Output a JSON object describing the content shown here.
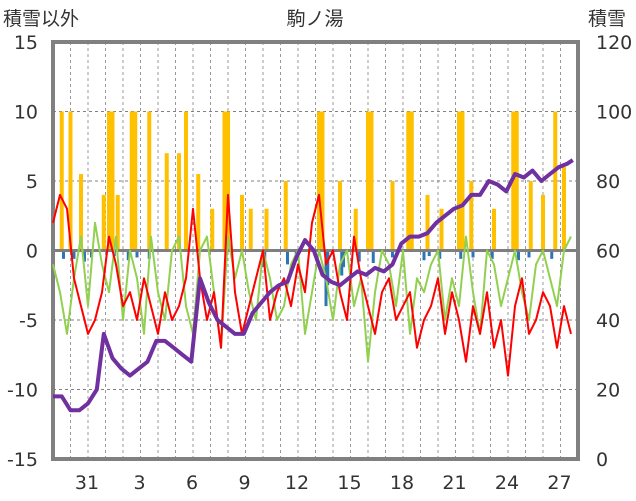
{
  "chart_data": {
    "type": "line",
    "title": "駒ノ湯",
    "left_axis": {
      "label": "積雪以外",
      "ylim": [
        -15,
        15
      ],
      "ticks": [
        15,
        10,
        5,
        0,
        -5,
        -10,
        -15
      ]
    },
    "right_axis": {
      "label": "積雪",
      "ylim": [
        0,
        120
      ],
      "ticks": [
        120,
        100,
        80,
        60,
        40,
        20,
        0
      ]
    },
    "x_ticks": [
      "31",
      "3",
      "6",
      "9",
      "12",
      "15",
      "18",
      "21",
      "24",
      "27"
    ],
    "x_tick_index": [
      2,
      5,
      8,
      11,
      14,
      17,
      20,
      23,
      26,
      29
    ],
    "x_range": [
      0,
      30
    ],
    "grid": true,
    "legend": "none",
    "colors": {
      "precip_bars": "#ffc000",
      "bars_negative": "#2e75b6",
      "temp_line": "#ff0000",
      "humidity_line": "#92d050",
      "snow_line": "#7030a0",
      "frame": "#808080",
      "grid": "#808080",
      "zero_line": "#7f7f7f"
    },
    "precip_bars": [
      [
        0.5,
        10
      ],
      [
        1.0,
        10
      ],
      [
        1.6,
        5.5
      ],
      [
        2.9,
        4
      ],
      [
        3.2,
        10
      ],
      [
        3.4,
        10
      ],
      [
        3.7,
        4
      ],
      [
        4.5,
        10
      ],
      [
        4.7,
        10
      ],
      [
        5.5,
        10
      ],
      [
        6.5,
        7
      ],
      [
        7.2,
        7
      ],
      [
        7.6,
        10
      ],
      [
        8.3,
        5.5
      ],
      [
        9.1,
        3
      ],
      [
        9.8,
        10
      ],
      [
        10.0,
        10
      ],
      [
        10.8,
        4
      ],
      [
        11.3,
        3
      ],
      [
        12.2,
        3
      ],
      [
        13.3,
        5
      ],
      [
        15.2,
        10
      ],
      [
        15.4,
        10
      ],
      [
        16.4,
        5
      ],
      [
        17.3,
        3
      ],
      [
        18.0,
        10
      ],
      [
        18.2,
        10
      ],
      [
        19.4,
        5
      ],
      [
        20.3,
        10
      ],
      [
        20.5,
        10
      ],
      [
        21.4,
        4
      ],
      [
        22.2,
        3
      ],
      [
        23.2,
        10
      ],
      [
        23.4,
        10
      ],
      [
        23.9,
        5
      ],
      [
        25.2,
        3
      ],
      [
        26.3,
        10
      ],
      [
        26.5,
        10
      ],
      [
        27.3,
        5
      ],
      [
        28.0,
        4
      ],
      [
        28.7,
        10
      ],
      [
        29.2,
        6
      ]
    ],
    "negative_bars": [
      [
        0.6,
        -0.6
      ],
      [
        1.2,
        -0.6
      ],
      [
        1.8,
        -0.8
      ],
      [
        2.2,
        -0.5
      ],
      [
        3.5,
        -0.4
      ],
      [
        4.3,
        -0.7
      ],
      [
        4.8,
        -0.5
      ],
      [
        5.5,
        -0.6
      ],
      [
        12.0,
        -1.2
      ],
      [
        12.1,
        -0.9
      ],
      [
        13.4,
        -1.0
      ],
      [
        13.9,
        -0.7
      ],
      [
        15.6,
        -4.0
      ],
      [
        15.7,
        -2.5
      ],
      [
        16.5,
        -1.8
      ],
      [
        16.6,
        -1.2
      ],
      [
        17.5,
        -0.8
      ],
      [
        18.3,
        -0.9
      ],
      [
        19.4,
        -0.5
      ],
      [
        21.2,
        -0.7
      ],
      [
        21.5,
        -0.4
      ],
      [
        22.1,
        -0.6
      ],
      [
        23.3,
        -0.6
      ],
      [
        24.0,
        -0.5
      ],
      [
        25.1,
        -0.6
      ],
      [
        26.6,
        -0.7
      ],
      [
        27.2,
        -0.5
      ],
      [
        28.5,
        -0.6
      ]
    ],
    "series": [
      {
        "axis": "left",
        "x": [
          0,
          0.4,
          0.8,
          1.2,
          1.6,
          2.0,
          2.4,
          2.8,
          3.2,
          3.6,
          4.0,
          4.4,
          4.8,
          5.2,
          5.6,
          6.0,
          6.4,
          6.8,
          7.2,
          7.6,
          8.0,
          8.4,
          8.8,
          9.2,
          9.6,
          10.0,
          10.4,
          10.8,
          11.2,
          11.6,
          12.0,
          12.4,
          12.8,
          13.2,
          13.6,
          14.0,
          14.4,
          14.8,
          15.2,
          15.6,
          16.0,
          16.4,
          16.8,
          17.2,
          17.6,
          18.0,
          18.4,
          18.8,
          19.2,
          19.6,
          20.0,
          20.4,
          20.8,
          21.2,
          21.6,
          22.0,
          22.4,
          22.8,
          23.2,
          23.6,
          24.0,
          24.4,
          24.8,
          25.2,
          25.6,
          26.0,
          26.4,
          26.8,
          27.2,
          27.6,
          28.0,
          28.4,
          28.8,
          29.2,
          29.6
        ],
        "values": [
          2,
          4,
          3,
          -2,
          -4,
          -6,
          -5,
          -3,
          1,
          -1,
          -4,
          -3,
          -5,
          -2,
          -4,
          -6,
          -3,
          -5,
          -4,
          -2,
          3,
          -2,
          -5,
          -3,
          -7,
          4,
          -3,
          -6,
          -4,
          -2,
          0,
          -5,
          -3,
          -2,
          -4,
          -1,
          -3,
          2,
          4,
          -1,
          0,
          -3,
          -5,
          1,
          -2,
          -4,
          -6,
          -3,
          -2,
          -5,
          -4,
          -3,
          -7,
          -5,
          -4,
          -2,
          -6,
          -3,
          -5,
          -8,
          -4,
          -6,
          -3,
          -7,
          -5,
          -9,
          -4,
          -2,
          -6,
          -5,
          -3,
          -4,
          -7,
          -4,
          -6
        ]
      },
      {
        "axis": "left",
        "x": [
          0,
          0.4,
          0.8,
          1.2,
          1.6,
          2.0,
          2.4,
          2.8,
          3.2,
          3.6,
          4.0,
          4.4,
          4.8,
          5.2,
          5.6,
          6.0,
          6.4,
          6.8,
          7.2,
          7.6,
          8.0,
          8.4,
          8.8,
          9.2,
          9.6,
          10.0,
          10.4,
          10.8,
          11.2,
          11.6,
          12.0,
          12.4,
          12.8,
          13.2,
          13.6,
          14.0,
          14.4,
          14.8,
          15.2,
          15.6,
          16.0,
          16.4,
          16.8,
          17.2,
          17.6,
          18.0,
          18.4,
          18.8,
          19.2,
          19.6,
          20.0,
          20.4,
          20.8,
          21.2,
          21.6,
          22.0,
          22.4,
          22.8,
          23.2,
          23.6,
          24.0,
          24.4,
          24.8,
          25.2,
          25.6,
          26.0,
          26.4,
          26.8,
          27.2,
          27.6,
          28.0,
          28.4,
          28.8,
          29.2,
          29.6
        ],
        "values": [
          -1,
          -3,
          -6,
          -2,
          1,
          -4,
          2,
          -1,
          -3,
          1,
          -5,
          0,
          -2,
          -6,
          1,
          -3,
          -5,
          0,
          1,
          -4,
          -6,
          0,
          1,
          -3,
          -7,
          1,
          -2,
          0,
          -3,
          -5,
          0,
          -2,
          -5,
          -4,
          -1,
          0,
          -6,
          -3,
          0,
          -2,
          -5,
          -1,
          0,
          -4,
          -2,
          -8,
          -3,
          0,
          -1,
          -4,
          0,
          -6,
          -2,
          -3,
          -1,
          0,
          -5,
          -2,
          -4,
          1,
          -3,
          -6,
          0,
          -1,
          -4,
          -2,
          0,
          -3,
          -5,
          -1,
          0,
          -2,
          -4,
          0,
          1
        ]
      },
      {
        "axis": "right",
        "x": [
          0,
          0.5,
          1.0,
          1.5,
          2.0,
          2.5,
          2.9,
          3.4,
          3.9,
          4.4,
          4.9,
          5.4,
          5.9,
          6.4,
          6.9,
          7.4,
          7.9,
          8.4,
          8.9,
          9.4,
          9.9,
          10.4,
          10.9,
          11.4,
          11.9,
          12.4,
          12.9,
          13.4,
          13.9,
          14.4,
          14.9,
          15.4,
          15.9,
          16.4,
          16.9,
          17.4,
          17.9,
          18.4,
          18.9,
          19.4,
          19.9,
          20.4,
          20.9,
          21.4,
          21.9,
          22.4,
          22.9,
          23.4,
          23.9,
          24.4,
          24.9,
          25.4,
          25.9,
          26.4,
          26.9,
          27.4,
          27.9,
          28.4,
          28.9,
          29.4,
          29.7
        ],
        "values": [
          18,
          18,
          14,
          14,
          16,
          20,
          36,
          29,
          26,
          24,
          26,
          28,
          34,
          34,
          32,
          30,
          28,
          52,
          45,
          40,
          38,
          36,
          36,
          42,
          45,
          48,
          50,
          51,
          58,
          63,
          60,
          53,
          51,
          50,
          52,
          54,
          53,
          55,
          54,
          56,
          62,
          64,
          64,
          65,
          68,
          70,
          72,
          73,
          76,
          76,
          80,
          79,
          77,
          82,
          81,
          83,
          80,
          82,
          84,
          85,
          86
        ]
      }
    ]
  }
}
